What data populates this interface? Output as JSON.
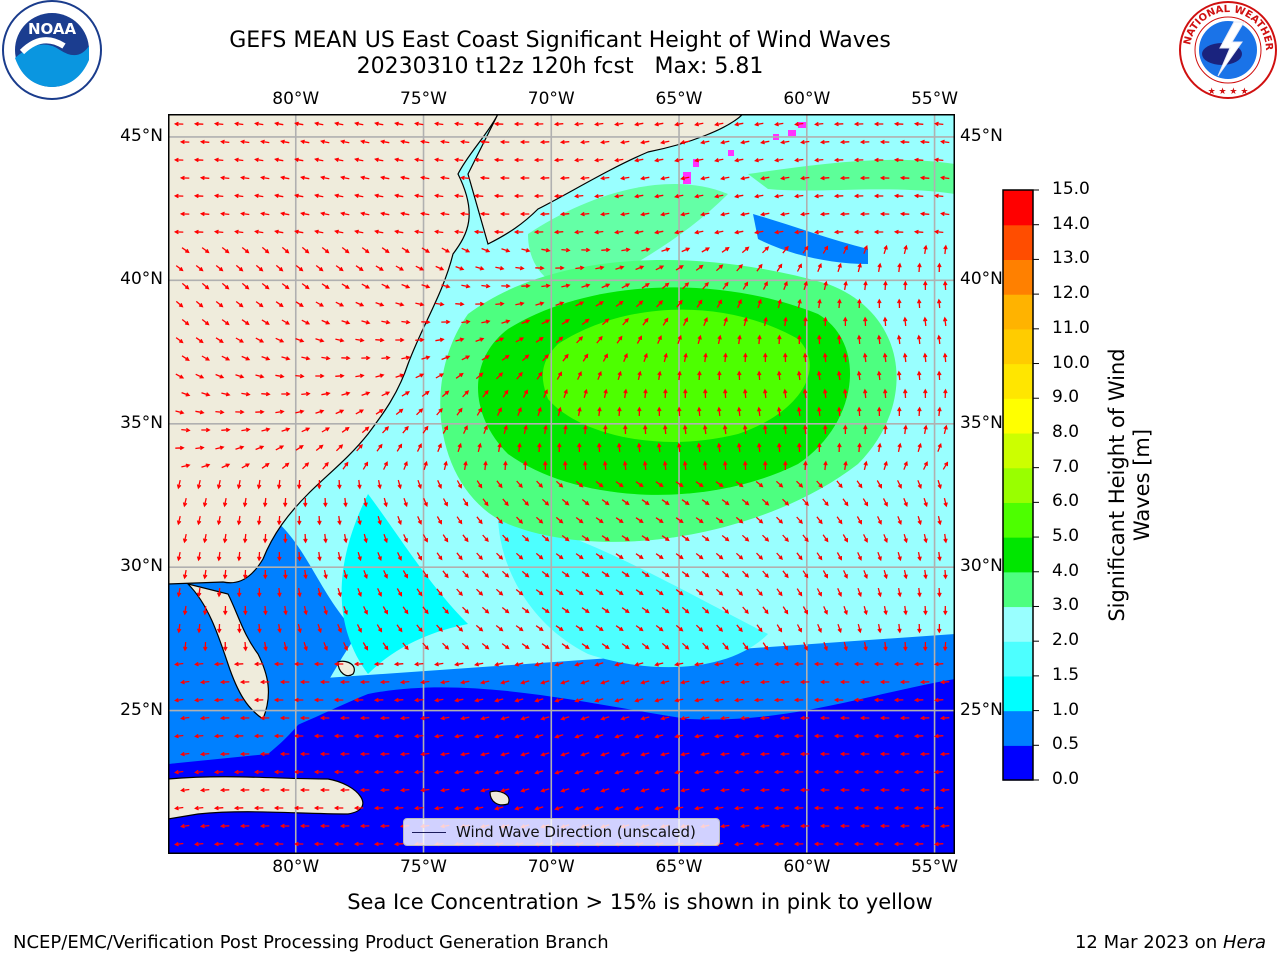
{
  "title": {
    "line1": "GEFS MEAN US East Coast Significant Height of Wind Waves",
    "line2": "20230310 t12z 120h fcst   Max: 5.81"
  },
  "logos": {
    "noaa_text": "NOAA",
    "nws_text": "NATIONAL WEATHER SERVICE"
  },
  "map": {
    "lon_labels": [
      "80°W",
      "75°W",
      "70°W",
      "65°W",
      "60°W",
      "55°W"
    ],
    "lon_values": [
      -80,
      -75,
      -70,
      -65,
      -60,
      -55
    ],
    "lat_labels": [
      "45°N",
      "40°N",
      "35°N",
      "30°N",
      "25°N"
    ],
    "lat_values": [
      45,
      40,
      35,
      30,
      25
    ],
    "extent": {
      "lon": [
        -85,
        -54.2
      ],
      "lat": [
        20,
        45.8
      ]
    },
    "legend_text": "Wind Wave Direction (unscaled)",
    "colors": {
      "land": "#efecdc",
      "ocean_lowest": "#0000ff",
      "arrow": "#ff0000",
      "grid": "#b0b0b0",
      "sea_ice": "#ff33ff"
    }
  },
  "colorbar": {
    "title": "Significant Height of Wind Waves [m]",
    "tick_labels": [
      "15.0",
      "14.0",
      "13.0",
      "12.0",
      "11.0",
      "10.0",
      "9.0",
      "8.0",
      "7.0",
      "6.0",
      "5.0",
      "4.0",
      "3.0",
      "2.0",
      "1.5",
      "1.0",
      "0.5",
      "0.0"
    ],
    "levels": [
      0.0,
      0.5,
      1.0,
      1.5,
      2.0,
      3.0,
      4.0,
      5.0,
      6.0,
      7.0,
      8.0,
      9.0,
      10.0,
      11.0,
      12.0,
      13.0,
      14.0,
      15.0
    ],
    "colors": [
      "#0000ff",
      "#0080ff",
      "#00ffff",
      "#4dffff",
      "#99ffff",
      "#4dff80",
      "#00e600",
      "#4dff00",
      "#99ff00",
      "#ccff00",
      "#ffff00",
      "#ffe600",
      "#ffcc00",
      "#ffb300",
      "#ff8000",
      "#ff4d00",
      "#ff0000"
    ]
  },
  "footer": {
    "sea_ice_note": "Sea Ice Concentration > 15% is shown in pink to yellow",
    "left": "NCEP/EMC/Verification Post Processing Product Generation Branch",
    "right_date": "12 Mar 2023 on ",
    "right_host": "Hera"
  }
}
